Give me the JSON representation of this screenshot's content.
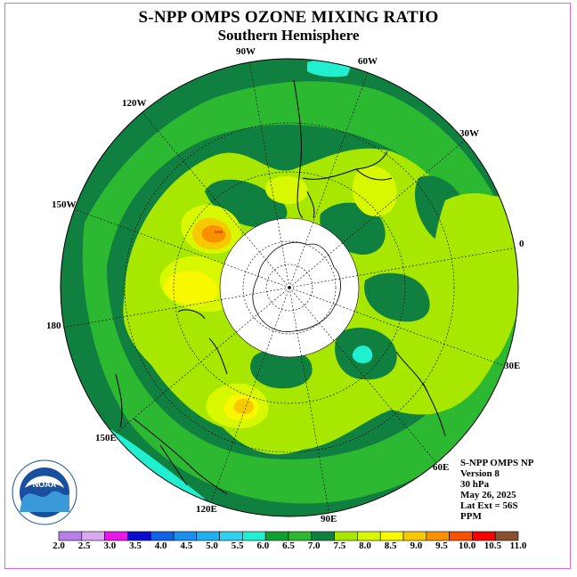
{
  "title": "S-NPP OMPS OZONE MIXING RATIO",
  "subtitle": "Southern Hemisphere",
  "longitude_labels": [
    "90W",
    "60W",
    "30W",
    "0",
    "30E",
    "60E",
    "90E",
    "120E",
    "150E",
    "180",
    "150W",
    "120W"
  ],
  "info": {
    "line1": "S-NPP OMPS NP",
    "line2": "Version 8",
    "line3": "30 hPa",
    "line4": "May 26, 2025",
    "line5": "Lat Ext = 56S",
    "line6": "PPM"
  },
  "logo_text": "NOAA",
  "colorbar": {
    "ticks": [
      "2.0",
      "2.5",
      "3.0",
      "3.5",
      "4.0",
      "4.5",
      "5.0",
      "5.5",
      "6.0",
      "6.5",
      "7.0",
      "7.5",
      "8.0",
      "8.5",
      "9.0",
      "9.5",
      "10.0",
      "10.5",
      "11.0"
    ],
    "colors": [
      "#b87ee8",
      "#d8a8f0",
      "#e818e8",
      "#0a0ad0",
      "#1060e8",
      "#1890f0",
      "#20b0f0",
      "#30d0f0",
      "#20f0d0",
      "#10a030",
      "#2cb830",
      "#108040",
      "#a8e800",
      "#d8f800",
      "#f8f800",
      "#f8c800",
      "#f89000",
      "#f85000",
      "#f80000",
      "#885030"
    ]
  },
  "colors": {
    "dark_green": "#108040",
    "mid_green": "#2cb830",
    "light_green": "#a8e800",
    "yellow_green": "#d8f800",
    "yellow": "#f8f800",
    "orange": "#f8a000",
    "cyan": "#20f0d0"
  }
}
